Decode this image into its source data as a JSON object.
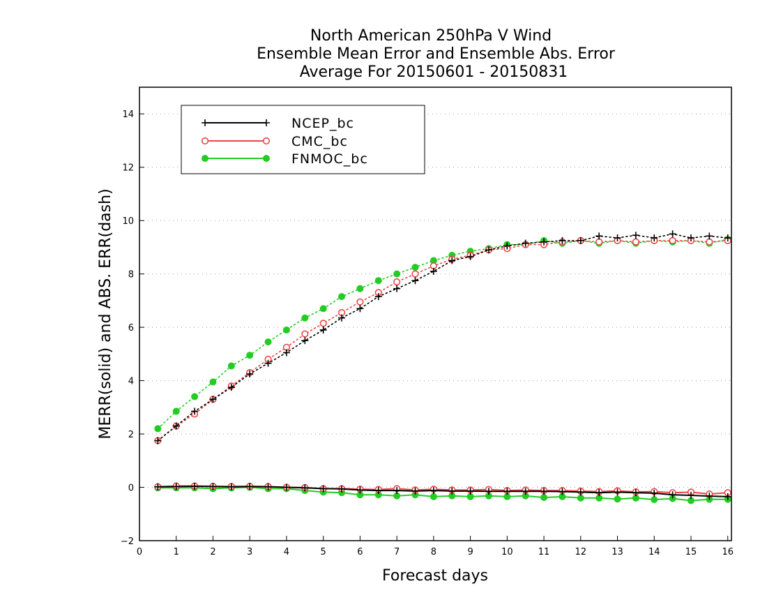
{
  "chart_data": {
    "type": "line",
    "title": [
      "North American 250hPa V Wind",
      "Ensemble Mean Error and Ensemble Abs. Error",
      "Average For 20150601 - 20150831"
    ],
    "xlabel": "Forecast days",
    "ylabel": "MERR(solid) and ABS. ERR(dash)",
    "xlim": [
      0,
      16.1
    ],
    "ylim": [
      -2,
      15
    ],
    "xticks": [
      "0",
      "1",
      "2",
      "3",
      "4",
      "5",
      "6",
      "7",
      "8",
      "9",
      "10",
      "11",
      "12",
      "13",
      "14",
      "15",
      "16"
    ],
    "yticks": [
      "-2",
      "0",
      "2",
      "4",
      "6",
      "8",
      "10",
      "12",
      "14"
    ],
    "grid": "horizontal dotted",
    "legend_position": "top-left",
    "x": [
      0.5,
      1,
      1.5,
      2,
      2.5,
      3,
      3.5,
      4,
      4.5,
      5,
      5.5,
      6,
      6.5,
      7,
      7.5,
      8,
      8.5,
      9,
      9.5,
      10,
      10.5,
      11,
      11.5,
      12,
      12.5,
      13,
      13.5,
      14,
      14.5,
      15,
      15.5,
      16
    ],
    "series": [
      {
        "name": "NCEP_bc",
        "color": "#000000",
        "marker": "plus",
        "mean_error": [
          0.02,
          0.03,
          0.04,
          0.03,
          0.02,
          0.03,
          0.02,
          0.0,
          -0.02,
          -0.05,
          -0.06,
          -0.1,
          -0.12,
          -0.12,
          -0.14,
          -0.12,
          -0.14,
          -0.14,
          -0.15,
          -0.15,
          -0.15,
          -0.15,
          -0.16,
          -0.18,
          -0.2,
          -0.18,
          -0.2,
          -0.22,
          -0.28,
          -0.3,
          -0.33,
          -0.35
        ],
        "abs_error": [
          1.75,
          2.3,
          2.85,
          3.3,
          3.75,
          4.25,
          4.65,
          5.05,
          5.5,
          5.9,
          6.35,
          6.7,
          7.15,
          7.45,
          7.75,
          8.1,
          8.5,
          8.65,
          8.9,
          9.05,
          9.15,
          9.2,
          9.25,
          9.25,
          9.42,
          9.35,
          9.45,
          9.35,
          9.5,
          9.35,
          9.42,
          9.35
        ]
      },
      {
        "name": "CMC_bc",
        "color": "#ee4444",
        "marker": "open-circle",
        "mean_error": [
          0.02,
          0.05,
          0.05,
          0.04,
          0.03,
          0.04,
          0.03,
          0.0,
          -0.01,
          -0.05,
          -0.05,
          -0.07,
          -0.08,
          -0.05,
          -0.1,
          -0.07,
          -0.1,
          -0.1,
          -0.08,
          -0.12,
          -0.1,
          -0.12,
          -0.12,
          -0.14,
          -0.16,
          -0.13,
          -0.17,
          -0.16,
          -0.2,
          -0.18,
          -0.25,
          -0.2
        ],
        "abs_error": [
          1.75,
          2.3,
          2.75,
          3.3,
          3.8,
          4.3,
          4.8,
          5.25,
          5.75,
          6.15,
          6.55,
          6.95,
          7.3,
          7.7,
          8.0,
          8.3,
          8.55,
          8.7,
          8.9,
          8.95,
          9.1,
          9.1,
          9.2,
          9.25,
          9.2,
          9.25,
          9.2,
          9.25,
          9.25,
          9.25,
          9.2,
          9.25
        ]
      },
      {
        "name": "FNMOC_bc",
        "color": "#22cc22",
        "marker": "filled-circle",
        "mean_error": [
          -0.02,
          -0.02,
          -0.02,
          -0.05,
          -0.02,
          0.0,
          -0.05,
          -0.05,
          -0.12,
          -0.18,
          -0.2,
          -0.28,
          -0.28,
          -0.32,
          -0.28,
          -0.35,
          -0.32,
          -0.35,
          -0.32,
          -0.35,
          -0.32,
          -0.38,
          -0.35,
          -0.4,
          -0.4,
          -0.44,
          -0.4,
          -0.46,
          -0.42,
          -0.5,
          -0.45,
          -0.45
        ],
        "abs_error": [
          2.2,
          2.85,
          3.4,
          3.95,
          4.55,
          4.95,
          5.45,
          5.9,
          6.35,
          6.7,
          7.15,
          7.45,
          7.75,
          8.0,
          8.25,
          8.5,
          8.7,
          8.85,
          8.95,
          9.1,
          9.1,
          9.25,
          9.15,
          9.25,
          9.15,
          9.25,
          9.15,
          9.25,
          9.2,
          9.25,
          9.15,
          9.3
        ]
      }
    ]
  }
}
